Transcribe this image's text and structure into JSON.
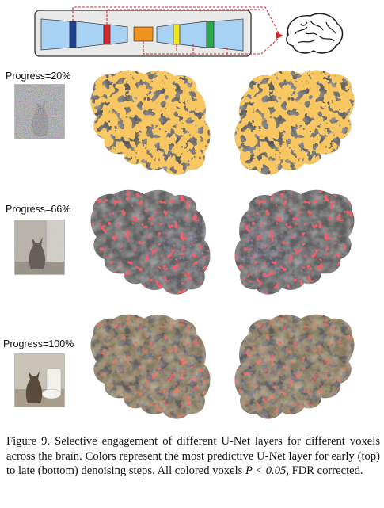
{
  "figure": {
    "rows": [
      {
        "label": "Progress=20%",
        "noise": "high"
      },
      {
        "label": "Progress=66%",
        "noise": "medium"
      },
      {
        "label": "Progress=100%",
        "noise": "none"
      }
    ],
    "caption": {
      "prefix": "Figure 9. Selective engagement of different U-Net layers for different voxels across the brain. Colors represent the most predictive U-Net layer for early (top) to late (bottom) denoising steps.  All colored voxels ",
      "math": "P < 0.05",
      "suffix": ", FDR corrected."
    },
    "layer_colors": {
      "layer1": "#1e3f8f",
      "layer2": "#d9262b",
      "bottleneck": "#f0921e",
      "layer4": "#f4e61e",
      "layer5": "#2aa84a",
      "block_fill": "#9fcbef",
      "brain_base": "#6b6b6b"
    }
  }
}
